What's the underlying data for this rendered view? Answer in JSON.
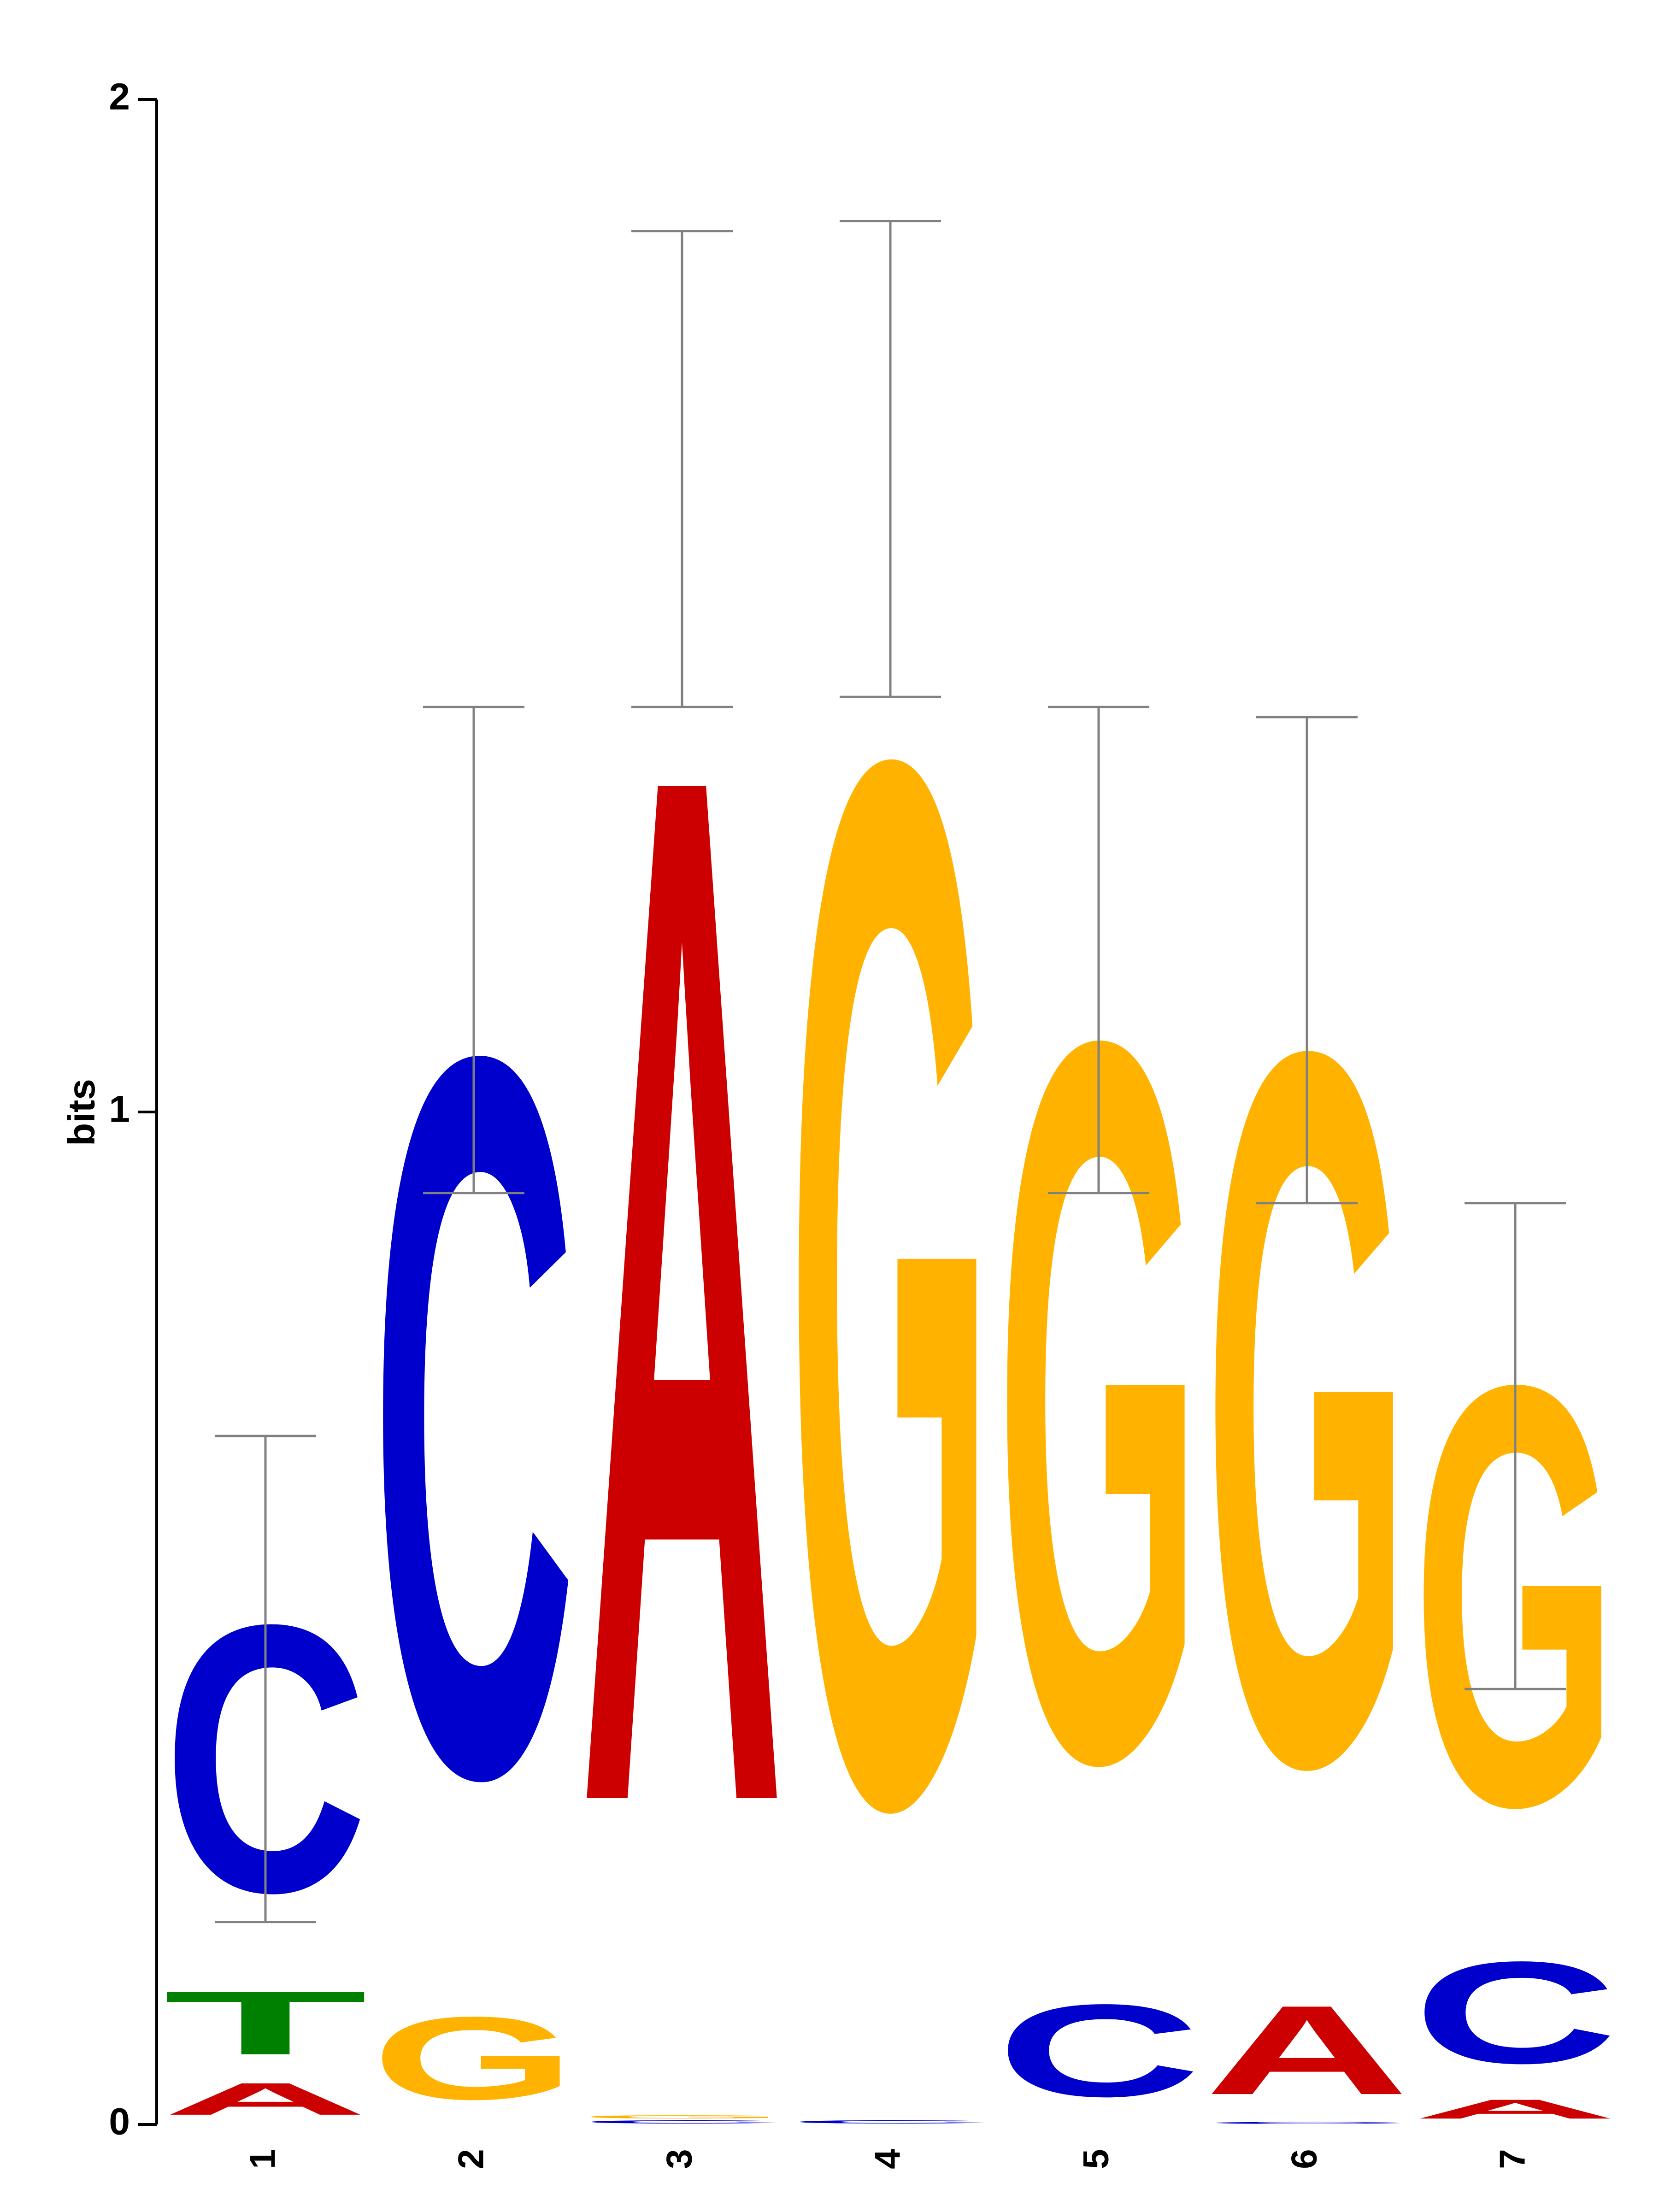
{
  "chart_data": {
    "type": "sequence-logo",
    "ylabel": "bits",
    "ylim": [
      0,
      2
    ],
    "yticks": [
      "0",
      "1",
      "2"
    ],
    "colors": {
      "A": "#cc0000",
      "C": "#0000cc",
      "G": "#ffb300",
      "T": "#008000"
    },
    "errorbar_color": "#808080",
    "positions": [
      {
        "label": "1",
        "letters": [
          {
            "base": "A",
            "bits": 0.05
          },
          {
            "base": "T",
            "bits": 0.1
          },
          {
            "base": "C",
            "bits": 0.42
          }
        ],
        "err": [
          0.2,
          0.68
        ]
      },
      {
        "label": "2",
        "letters": [
          {
            "base": "G",
            "bits": 0.13
          },
          {
            "base": "C",
            "bits": 1.13
          }
        ],
        "err": [
          0.92,
          1.4
        ]
      },
      {
        "label": "3",
        "letters": [
          {
            "base": "C",
            "bits": 0.005
          },
          {
            "base": "G",
            "bits": 0.005
          },
          {
            "base": "A",
            "bits": 1.62
          }
        ],
        "err": [
          1.4,
          1.87
        ]
      },
      {
        "label": "4",
        "letters": [
          {
            "base": "C",
            "bits": 0.005
          },
          {
            "base": "G",
            "bits": 1.64
          }
        ],
        "err": [
          1.41,
          1.88
        ]
      },
      {
        "label": "5",
        "letters": [
          {
            "base": "C",
            "bits": 0.145
          },
          {
            "base": "G",
            "bits": 1.13
          }
        ],
        "err": [
          0.92,
          1.4
        ]
      },
      {
        "label": "6",
        "letters": [
          {
            "base": "C",
            "bits": 0.003
          },
          {
            "base": "A",
            "bits": 0.14
          },
          {
            "base": "G",
            "bits": 1.12
          }
        ],
        "err": [
          0.91,
          1.39
        ]
      },
      {
        "label": "7",
        "letters": [
          {
            "base": "A",
            "bits": 0.03
          },
          {
            "base": "C",
            "bits": 0.16
          },
          {
            "base": "G",
            "bits": 0.66
          }
        ],
        "err": [
          0.43,
          0.91
        ]
      }
    ]
  }
}
